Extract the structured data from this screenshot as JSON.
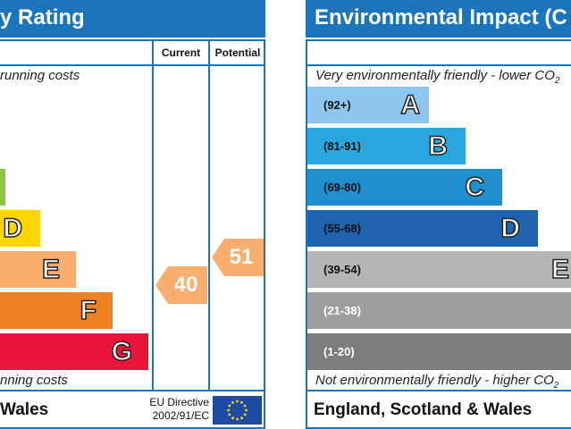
{
  "left_panel": {
    "title": "y Rating",
    "col_current": "Current",
    "col_potential": "Potential",
    "top_caption": "running costs",
    "bottom_caption": "nning costs",
    "footer": "Wales",
    "eu_directive_line1": "EU Directive",
    "eu_directive_line2": "2002/91/EC",
    "bands": [
      {
        "letter": "",
        "color": "#8cc63f"
      },
      {
        "letter": "D",
        "color": "#ffd500"
      },
      {
        "letter": "E",
        "color": "#f9ae6f"
      },
      {
        "letter": "F",
        "color": "#ef8023"
      },
      {
        "letter": "G",
        "color": "#e9153b"
      }
    ],
    "current_value": "40",
    "current_color": "#f9ae6f",
    "potential_value": "51",
    "potential_color": "#f9ae6f"
  },
  "right_panel": {
    "title": "Environmental Impact (C",
    "top_caption": "Very environmentally friendly - lower CO",
    "top_caption_sub": "2",
    "bottom_caption": "Not environmentally friendly - higher CO",
    "bottom_caption_sub": "2",
    "footer": "England, Scotland & Wales",
    "bands": [
      {
        "range": "(92+)",
        "letter": "A",
        "color": "#8dc7ed",
        "range_color": "#111111"
      },
      {
        "range": "(81-91)",
        "letter": "B",
        "color": "#2aa6df",
        "range_color": "#111111"
      },
      {
        "range": "(69-80)",
        "letter": "C",
        "color": "#1f8fcf",
        "range_color": "#111111"
      },
      {
        "range": "(55-68)",
        "letter": "D",
        "color": "#1f63ae",
        "range_color": "#111111"
      },
      {
        "range": "(39-54)",
        "letter": "E",
        "color": "#b5b5b5",
        "range_color": "#111111"
      },
      {
        "range": "(21-38)",
        "letter": "",
        "color": "#9e9e9e",
        "range_color": "#ffffff"
      },
      {
        "range": "(1-20)",
        "letter": "",
        "color": "#7d7d7d",
        "range_color": "#ffffff"
      }
    ]
  }
}
